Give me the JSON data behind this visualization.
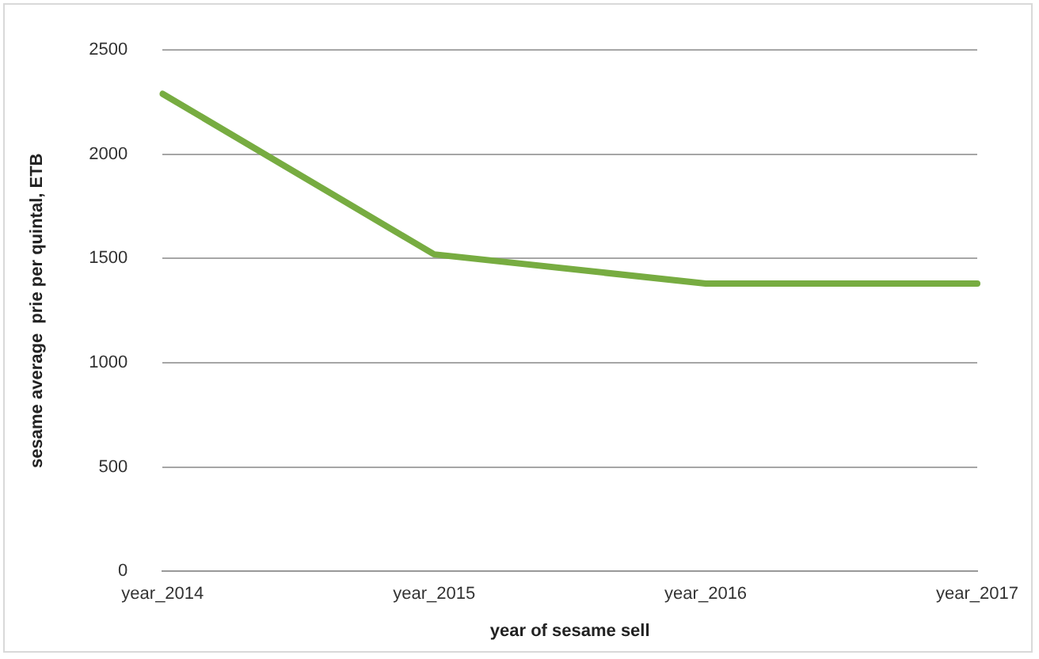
{
  "chart_data": {
    "type": "line",
    "xlabel": "year of sesame sell",
    "ylabel": "sesame average  prie per quintal, ETB",
    "categories": [
      "year_2014",
      "year_2015",
      "year_2016",
      "year_2017"
    ],
    "series": [
      {
        "color": "#77ac41",
        "values": [
          2290,
          1520,
          1380,
          1380
        ]
      }
    ],
    "ylim": [
      0,
      2500
    ],
    "yticks": [
      0,
      500,
      1000,
      1500,
      2000,
      2500
    ],
    "grid": "y",
    "legend": false,
    "marker": "none",
    "line_style": "solid"
  }
}
